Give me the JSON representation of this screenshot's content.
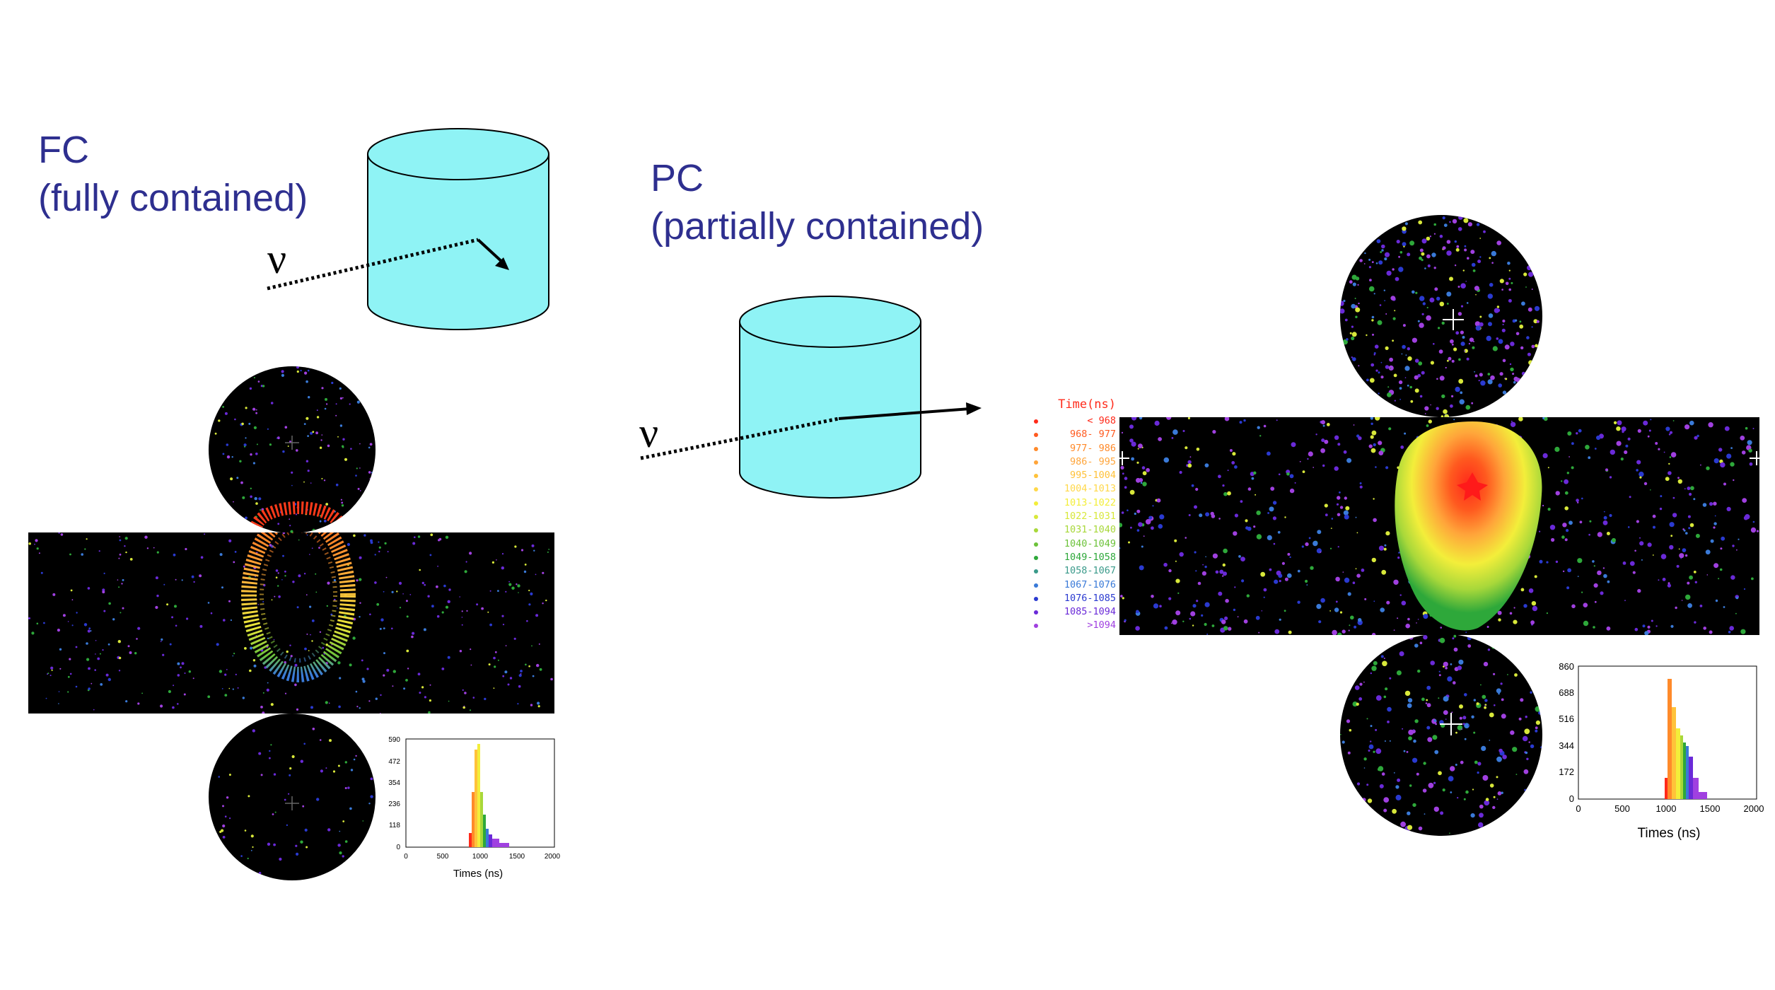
{
  "fc": {
    "title": "FC",
    "subtitle": "(fully contained)",
    "symbol": "ν"
  },
  "pc": {
    "title": "PC",
    "subtitle": "(partially contained)",
    "symbol": "ν"
  },
  "legend": {
    "title": "Time(ns)",
    "entries": [
      {
        "label": "< 968",
        "color": "#ff2a1a"
      },
      {
        "label": "968- 977",
        "color": "#ff5a1f"
      },
      {
        "label": "977- 986",
        "color": "#ff8a2a"
      },
      {
        "label": "986- 995",
        "color": "#ffa53a"
      },
      {
        "label": "995-1004",
        "color": "#ffc23a"
      },
      {
        "label": "1004-1013",
        "color": "#ffd84a"
      },
      {
        "label": "1013-1022",
        "color": "#f3ee3a"
      },
      {
        "label": "1022-1031",
        "color": "#d8e83a"
      },
      {
        "label": "1031-1040",
        "color": "#a8d83a"
      },
      {
        "label": "1040-1049",
        "color": "#6cc23a"
      },
      {
        "label": "1049-1058",
        "color": "#2ea83a"
      },
      {
        "label": "1058-1067",
        "color": "#3a9a8a"
      },
      {
        "label": "1067-1076",
        "color": "#3a7ad8"
      },
      {
        "label": "1076-1085",
        "color": "#2a3ad0"
      },
      {
        "label": "1085-1094",
        "color": "#6a2ad8"
      },
      {
        "label": ">1094",
        "color": "#a040e0"
      }
    ]
  },
  "fc_histogram": {
    "xlabel": "Times (ns)",
    "yticks": [
      "0",
      "118",
      "236",
      "354",
      "472",
      "590"
    ],
    "xticks": [
      "0",
      "500",
      "1000",
      "1500",
      "2000"
    ]
  },
  "pc_histogram": {
    "xlabel": "Times (ns)",
    "yticks": [
      "0",
      "172",
      "344",
      "516",
      "688",
      "860"
    ],
    "xticks": [
      "0",
      "500",
      "1000",
      "1500",
      "2000"
    ]
  },
  "colors": {
    "heading": "#2e2f8f",
    "cylinder": "#8ff3f5",
    "event_bg": "#000000"
  }
}
